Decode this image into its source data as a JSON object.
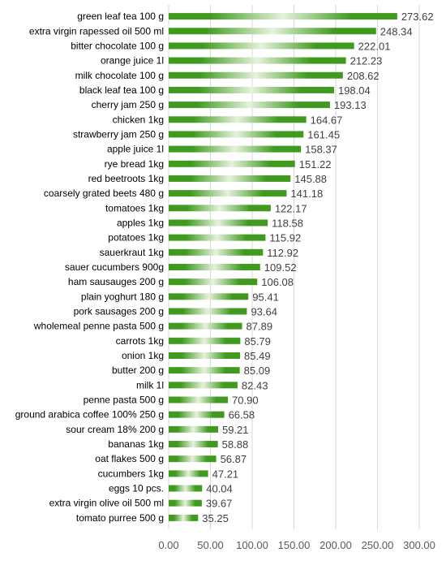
{
  "chart_data": {
    "type": "bar",
    "orientation": "horizontal",
    "title": "",
    "xlabel": "",
    "ylabel": "",
    "xlim": [
      0,
      300
    ],
    "xticks": [
      0,
      50,
      100,
      150,
      200,
      250,
      300
    ],
    "xtick_labels": [
      "0.00",
      "50.00",
      "100.00",
      "150.00",
      "200.00",
      "250.00",
      "300.00"
    ],
    "grid": "vertical",
    "bar_color": "#3f9a1f",
    "bar_highlight_color": "#e6f2dc",
    "categories": [
      "green leaf tea 100 g",
      "extra virgin rapessed oil 500 ml",
      "bitter chocolate 100 g",
      "orange juice 1l",
      "milk chocolate 100 g",
      "black leaf tea 100 g",
      "cherry jam 250 g",
      "chicken 1kg",
      "strawberry jam 250 g",
      "apple juice 1l",
      "rye bread 1kg",
      "red beetroots  1kg",
      "coarsely grated beets 480 g",
      "tomatoes 1kg",
      "apples 1kg",
      "potatoes 1kg",
      "sauerkraut 1kg",
      "sauer cucumbers 900g",
      "ham sausauges 200 g",
      "plain yoghurt 180 g",
      "pork sausages 200 g",
      "wholemeal penne pasta 500 g",
      "carrots 1kg",
      "onion 1kg",
      "butter 200 g",
      "milk 1l",
      "penne pasta 500 g",
      "ground arabica coffee 100% 250 g",
      "sour cream 18% 200 g",
      "bananas 1kg",
      "oat flakes 500 g",
      "cucumbers 1kg",
      "eggs 10 pcs.",
      "extra virgin olive oil 500 ml",
      "tomato purree 500 g"
    ],
    "values": [
      273.62,
      248.34,
      222.01,
      212.23,
      208.62,
      198.04,
      193.13,
      164.67,
      161.45,
      158.37,
      151.22,
      145.88,
      141.18,
      122.17,
      118.58,
      115.92,
      112.92,
      109.52,
      106.08,
      95.41,
      93.64,
      87.89,
      85.79,
      85.49,
      85.09,
      82.43,
      70.9,
      66.58,
      59.21,
      58.88,
      56.87,
      47.21,
      40.04,
      39.67,
      35.25
    ],
    "value_labels": [
      "273.62",
      "248.34",
      "222.01",
      "212.23",
      "208.62",
      "198.04",
      "193.13",
      "164.67",
      "161.45",
      "158.37",
      "151.22",
      "145.88",
      "141.18",
      "122.17",
      "118.58",
      "115.92",
      "112.92",
      "109.52",
      "106.08",
      "95.41",
      "93.64",
      "87.89",
      "85.79",
      "85.49",
      "85.09",
      "82.43",
      "70.90",
      "66.58",
      "59.21",
      "58.88",
      "56.87",
      "47.21",
      "40.04",
      "39.67",
      "35.25"
    ]
  }
}
